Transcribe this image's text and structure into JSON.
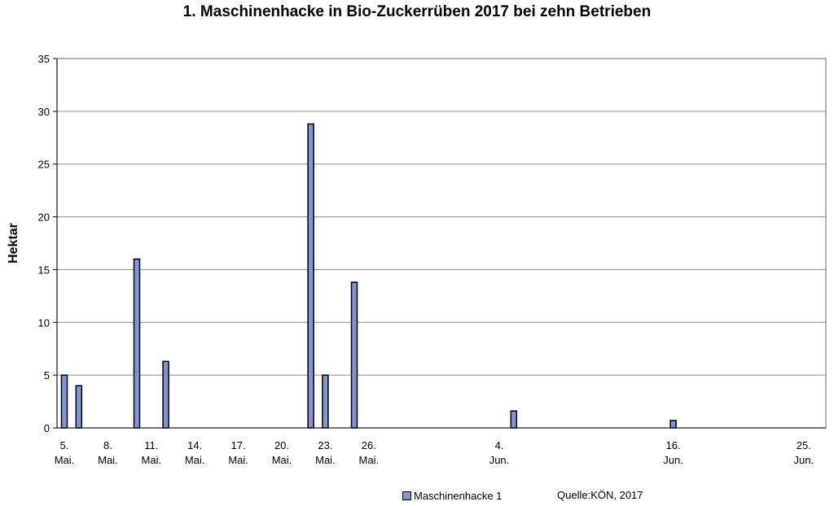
{
  "chart_data": {
    "type": "bar",
    "title": "1. Maschinenhacke in Bio-Zuckerrüben 2017 bei zehn Betrieben",
    "ylabel": "Hektar",
    "xlabel": "",
    "ylim": [
      0,
      35
    ],
    "yticks": [
      0,
      5,
      10,
      15,
      20,
      25,
      30,
      35
    ],
    "x_axis_type": "date",
    "xlim": [
      "2017-05-05",
      "2017-06-27"
    ],
    "xticks": [
      {
        "date": "2017-05-05",
        "line1": "5.",
        "line2": "Mai."
      },
      {
        "date": "2017-05-08",
        "line1": "8.",
        "line2": "Mai."
      },
      {
        "date": "2017-05-11",
        "line1": "11.",
        "line2": "Mai."
      },
      {
        "date": "2017-05-14",
        "line1": "14.",
        "line2": "Mai."
      },
      {
        "date": "2017-05-17",
        "line1": "17.",
        "line2": "Mai."
      },
      {
        "date": "2017-05-20",
        "line1": "20.",
        "line2": "Mai."
      },
      {
        "date": "2017-05-23",
        "line1": "23.",
        "line2": "Mai."
      },
      {
        "date": "2017-05-26",
        "line1": "26.",
        "line2": "Mai."
      },
      {
        "date": "2017-06-04",
        "line1": "4.",
        "line2": "Jun."
      },
      {
        "date": "2017-06-16",
        "line1": "16.",
        "line2": "Jun."
      },
      {
        "date": "2017-06-25",
        "line1": "25.",
        "line2": "Jun."
      }
    ],
    "grid": true,
    "legend_position": "bottom",
    "bar_color": "#7f95d6",
    "series": [
      {
        "name": "Maschinenhacke 1",
        "points": [
          {
            "x": "2017-05-05",
            "y": 5
          },
          {
            "x": "2017-05-06",
            "y": 4
          },
          {
            "x": "2017-05-10",
            "y": 16
          },
          {
            "x": "2017-05-12",
            "y": 6.3
          },
          {
            "x": "2017-05-22",
            "y": 28.8
          },
          {
            "x": "2017-05-23",
            "y": 5
          },
          {
            "x": "2017-05-25",
            "y": 13.8
          },
          {
            "x": "2017-06-05",
            "y": 1.6
          },
          {
            "x": "2017-06-16",
            "y": 0.7
          }
        ]
      }
    ]
  },
  "source_note": "Quelle:KÖN, 2017"
}
